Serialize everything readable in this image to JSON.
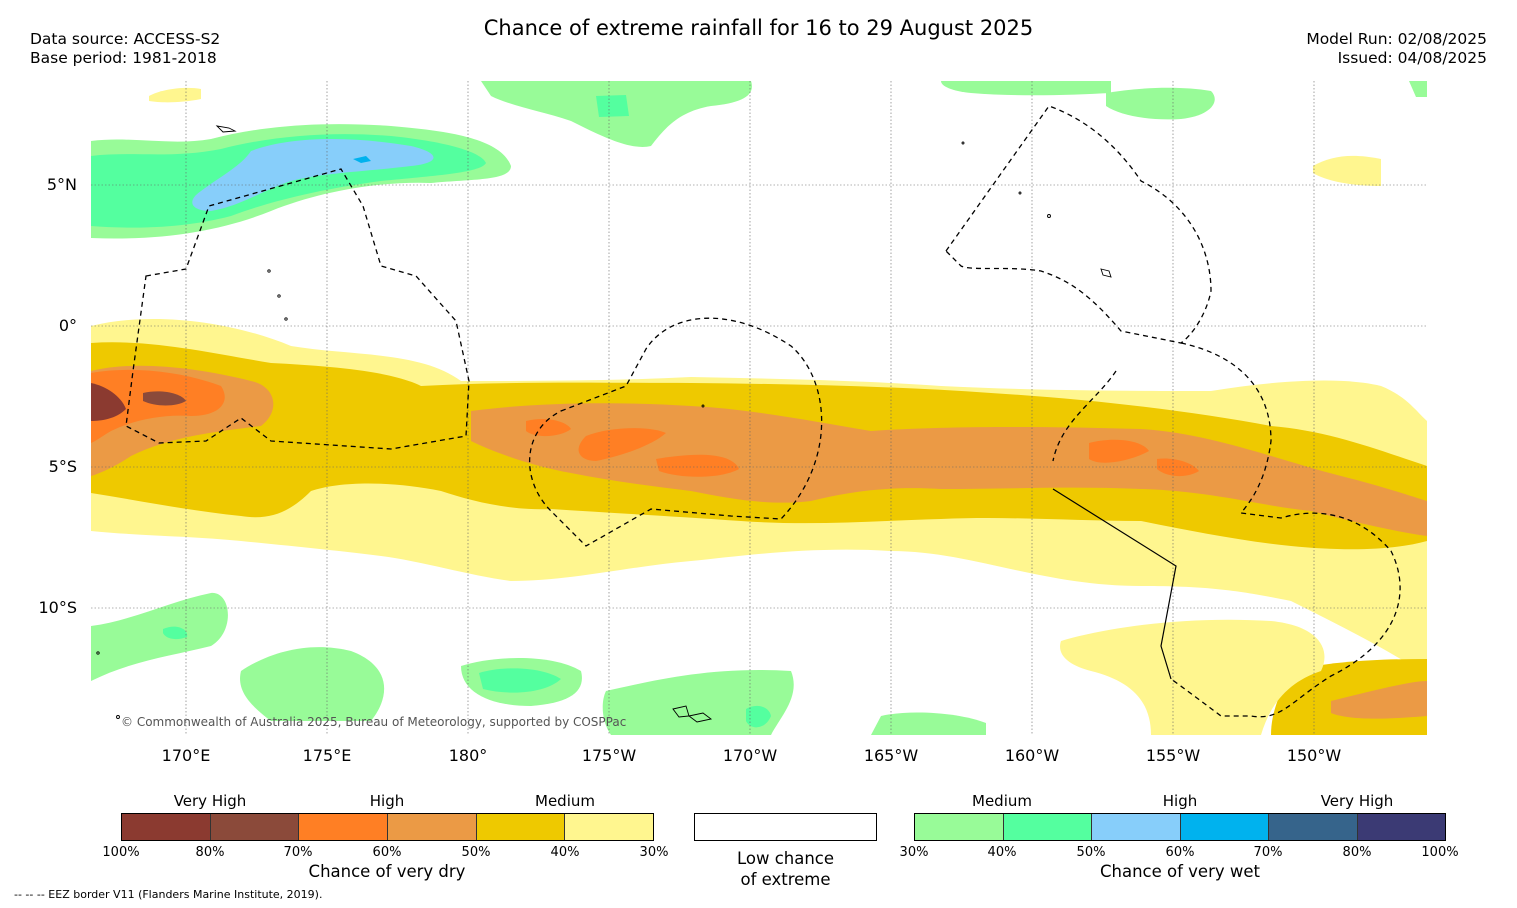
{
  "title": "Chance of extreme rainfall for 16 to 29 August 2025",
  "meta_left": {
    "source": "Data source: ACCESS-S2",
    "base": "Base period: 1981-2018"
  },
  "meta_right": {
    "model_run": "Model Run: 02/08/2025",
    "issued": "Issued: 04/08/2025"
  },
  "latitude_labels": [
    "5°N",
    "0°",
    "5°S",
    "10°S"
  ],
  "longitude_labels": [
    "170°E",
    "175°E",
    "180°",
    "175°W",
    "170°W",
    "165°W",
    "160°W",
    "155°W",
    "150°W"
  ],
  "copyright": "© Commonwealth of Australia 2025, Bureau of Meteorology, supported by COSPPac",
  "colors": {
    "dry": [
      "#8b3a30",
      "#8b4a3a",
      "#ff7f24",
      "#eb9a45",
      "#eec900",
      "#fff68f"
    ],
    "wet": [
      "#98fb98",
      "#54ff9f",
      "#87cefa",
      "#00b2ee",
      "#36648b",
      "#3b3a74"
    ]
  },
  "legend": {
    "dry": {
      "levels": [
        "Very High",
        "High",
        "Medium"
      ],
      "ticks": [
        "100%",
        "80%",
        "70%",
        "60%",
        "50%",
        "40%",
        "30%"
      ],
      "caption": "Chance of very dry"
    },
    "neutral": {
      "caption_line1": "Low chance",
      "caption_line2": "of extreme"
    },
    "wet": {
      "levels": [
        "Medium",
        "High",
        "Very High"
      ],
      "ticks": [
        "30%",
        "40%",
        "50%",
        "60%",
        "70%",
        "80%",
        "100%"
      ],
      "caption": "Chance of very wet"
    }
  },
  "footer": "--  --  -- EEZ border V11 (Flanders Marine Institute, 2019)."
}
